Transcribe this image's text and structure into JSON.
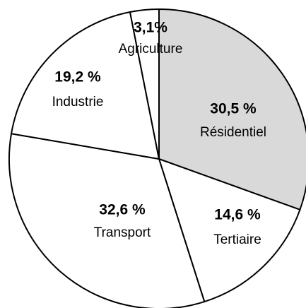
{
  "chart_data": {
    "type": "pie",
    "categories": [
      "Résidentiel",
      "Tertiaire",
      "Transport",
      "Industrie",
      "Agriculture"
    ],
    "values": [
      30.5,
      14.6,
      32.6,
      19.2,
      3.1
    ],
    "value_labels": [
      "30,5 %",
      "14,6 %",
      "32,6 %",
      "19,2 %",
      "3,1%"
    ],
    "colors": [
      "#d9d9d9",
      "#ffffff",
      "#ffffff",
      "#ffffff",
      "#ffffff"
    ]
  }
}
